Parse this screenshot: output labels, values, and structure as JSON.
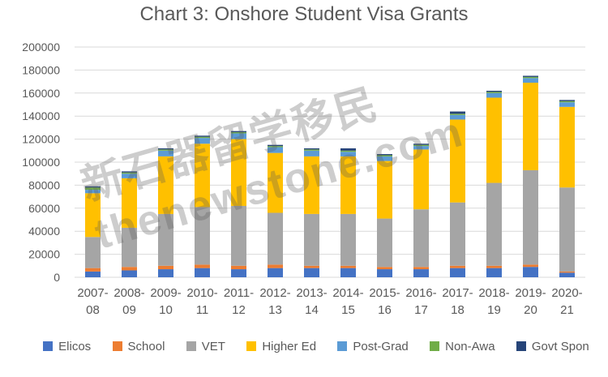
{
  "chart_data": {
    "type": "bar",
    "stacked": true,
    "title": "Chart 3: Onshore Student Visa Grants",
    "xlabel": "",
    "ylabel": "",
    "ylim": [
      0,
      200000
    ],
    "yticks": [
      0,
      20000,
      40000,
      60000,
      80000,
      100000,
      120000,
      140000,
      160000,
      180000,
      200000
    ],
    "grid": true,
    "legend_position": "bottom",
    "categories": [
      [
        "2007-",
        "08"
      ],
      [
        "2008-",
        "09"
      ],
      [
        "2009-",
        "10"
      ],
      [
        "2010-",
        "11"
      ],
      [
        "2011-",
        "12"
      ],
      [
        "2012-",
        "13"
      ],
      [
        "2013-",
        "14"
      ],
      [
        "2014-",
        "15"
      ],
      [
        "2015-",
        "16"
      ],
      [
        "2016-",
        "17"
      ],
      [
        "2017-",
        "18"
      ],
      [
        "2018-",
        "19"
      ],
      [
        "2019-",
        "20"
      ],
      [
        "2020-",
        "21"
      ]
    ],
    "series": [
      {
        "name": "Elicos",
        "color": "#4472c4",
        "values": [
          5000,
          6000,
          7000,
          8000,
          7000,
          8000,
          8000,
          8000,
          7000,
          7000,
          8000,
          8000,
          9000,
          4000
        ]
      },
      {
        "name": "School",
        "color": "#ed7d31",
        "values": [
          3000,
          3000,
          3000,
          3000,
          3000,
          3000,
          2000,
          2000,
          2000,
          2000,
          2000,
          2000,
          2000,
          1000
        ]
      },
      {
        "name": "VET",
        "color": "#a5a5a5",
        "values": [
          27000,
          34000,
          45000,
          50000,
          52000,
          45000,
          45000,
          45000,
          42000,
          50000,
          55000,
          72000,
          82000,
          73000
        ]
      },
      {
        "name": "Higher Ed",
        "color": "#ffc000",
        "values": [
          38000,
          43000,
          50000,
          55000,
          58000,
          52000,
          50000,
          50000,
          50000,
          52000,
          72000,
          74000,
          76000,
          70000
        ]
      },
      {
        "name": "Post-Grad",
        "color": "#5b9bd5",
        "values": [
          3000,
          4000,
          5000,
          5000,
          5000,
          5000,
          5000,
          4000,
          4000,
          3000,
          4000,
          4000,
          4000,
          4000
        ]
      },
      {
        "name": "Non-Awa",
        "color": "#70ad47",
        "values": [
          2000,
          1000,
          1000,
          1000,
          1000,
          1000,
          1000,
          1000,
          1000,
          1000,
          1000,
          1000,
          1000,
          1000
        ]
      },
      {
        "name": "Govt Spon",
        "color": "#264478",
        "values": [
          1000,
          1000,
          1000,
          1000,
          1000,
          1000,
          1000,
          2000,
          1000,
          1000,
          2000,
          1000,
          1000,
          1000
        ]
      }
    ]
  },
  "watermark": {
    "text": "新石器留学移民 thenewstone.com"
  }
}
